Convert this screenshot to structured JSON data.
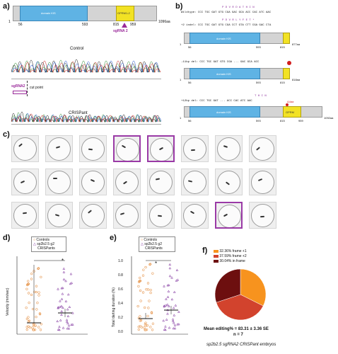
{
  "panels": {
    "a": "a)",
    "b": "b)",
    "c": "c)",
    "d": "d)",
    "e": "e)",
    "f": "f)"
  },
  "panel_a": {
    "start": "1",
    "end": "1096aa",
    "domain1_label": "domain KIS",
    "domain2_label": "GPRM1-2",
    "ticks": [
      "56",
      "593",
      "815",
      "959"
    ],
    "guide_label": "sgRNA 2",
    "control_label": "Control",
    "crispant_label": "CRISPant",
    "guide_label_2": "sgRNA2",
    "cut_label": "cut point"
  },
  "panel_b": {
    "wildtype_aa": "P  D  V  R  D  A  T  H  I  N",
    "wildtype_seq": "Wildtype: CCC TGC GAT GTG CGA GAC GCA ACC CAC ATC AAC",
    "ins2_aa": "P  D  V  R  L  Y  F  E  T  *",
    "ins2_seq": "+2 indel: CCC TGC GAT GTG CGA CCT GTA CTT CGA GAC CTA",
    "del11_label": "-11bp del: CCC TGC GAT GTG CGA ... GAC GCA ACC",
    "del12_aa": "T  H  I  N",
    "del12_seq": "+12bp del: CCC TGC GAT ... ACC CAC ATC AAC",
    "tick_56": "56",
    "tick_593": "593",
    "tick_815": "815",
    "tick_959": "959",
    "end1": "877aa",
    "end2": "818aa",
    "end3": "1092aa",
    "delta_label": "Δ4aa",
    "domain1_label": "domain KIS",
    "domain2_label": "GPRM"
  },
  "panel_c": {
    "rows": [
      [
        0,
        0,
        0,
        1,
        1,
        0,
        0,
        0
      ],
      [
        0,
        0,
        0,
        0,
        0,
        0,
        0,
        0
      ],
      [
        0,
        0,
        0,
        0,
        0,
        0,
        1,
        0
      ]
    ]
  },
  "panel_d": {
    "legend_control": "Controls",
    "legend_crispant_1": "sp2b2.5 g2",
    "legend_crispant_2": "CRISPants",
    "ylabel": "Velocity (mm/sec)",
    "sig": "*"
  },
  "panel_e": {
    "legend_control": "Controls",
    "legend_crispant_1": "sp2b2.5 g2",
    "legend_crispant_2": "CRISPants",
    "ylabel": "Total darting duration (%)",
    "sig": "*",
    "yticks": [
      "1.0",
      "0.8",
      "0.6",
      "0.4",
      "0.2",
      "0.0"
    ]
  },
  "panel_f": {
    "legend": [
      {
        "label": "32.36% frame +1",
        "color": "#f7931e"
      },
      {
        "label": "37.59% frame +2",
        "color": "#d2432d"
      },
      {
        "label": "30.04% in frame",
        "color": "#6d0f0f"
      }
    ],
    "mean_line": "Mean editing% = 83.31 ± 3.36 SE",
    "n_line": "n = 7",
    "caption": "sp2b2.5 sgRNA2 CRISPant embryos"
  },
  "chart_data": [
    {
      "type": "pie",
      "labels": [
        "frame +1",
        "frame +2",
        "in frame"
      ],
      "values": [
        32.36,
        37.59,
        30.04
      ],
      "colors": [
        "#f7931e",
        "#d2432d",
        "#6d0f0f"
      ]
    }
  ]
}
